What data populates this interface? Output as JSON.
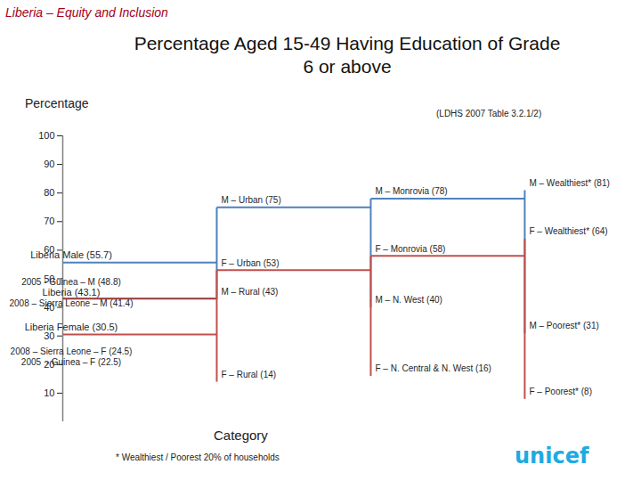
{
  "chart_data": {
    "type": "line",
    "header": "Liberia – Equity and Inclusion",
    "title": "Percentage Aged 15-49 Having Education of Grade 6 or above",
    "y_label": "Percentage",
    "source": "(LDHS 2007 Table 3.2.1/2)",
    "x_label": "Category",
    "note": "* Wealthiest / Poorest 20% of households",
    "logo": "unicef",
    "ylim": [
      0,
      100
    ],
    "yticks": [
      10,
      20,
      30,
      40,
      50,
      60,
      70,
      80,
      90,
      100
    ],
    "tick_labels": "y",
    "total": {
      "label": "Liberia (43.1)",
      "value": 43.1,
      "color": "#953735"
    },
    "comparisons": [
      {
        "label": "2005 - Guinea – M (48.8)",
        "value": 48.8
      },
      {
        "label": "2008 – Sierra Leone – M (41.4)",
        "value": 41.4
      },
      {
        "label": "2008 – Sierra Leone – F (24.5)",
        "value": 24.5
      },
      {
        "label": "2005  - Guinea – F (22.5)",
        "value": 22.5
      }
    ],
    "series": [
      {
        "color": "#4f81bd",
        "national": {
          "label": "Liberia Male (55.7)",
          "value": 55.7
        },
        "levels": [
          [
            {
              "label": "M – Urban (75)",
              "value": 75
            },
            {
              "label": "M – Rural (43)",
              "value": 43
            }
          ],
          [
            {
              "label": "M – Monrovia (78)",
              "value": 78
            },
            {
              "label": "M – N. West (40)",
              "value": 40
            }
          ],
          [
            {
              "label": "M – Wealthiest* (81)",
              "value": 81
            },
            {
              "label": "M – Poorest* (31)",
              "value": 31
            }
          ]
        ]
      },
      {
        "color": "#c0504d",
        "national": {
          "label": "Liberia Female (30.5)",
          "value": 30.5
        },
        "levels": [
          [
            {
              "label": "F – Urban (53)",
              "value": 53
            },
            {
              "label": "F – Rural (14)",
              "value": 14
            }
          ],
          [
            {
              "label": "F – Monrovia (58)",
              "value": 58
            },
            {
              "label": "F – N. Central & N. West (16)",
              "value": 16
            }
          ],
          [
            {
              "label": "F – Wealthiest* (64)",
              "value": 64
            },
            {
              "label": "F – Poorest* (8)",
              "value": 8
            }
          ]
        ]
      }
    ]
  }
}
